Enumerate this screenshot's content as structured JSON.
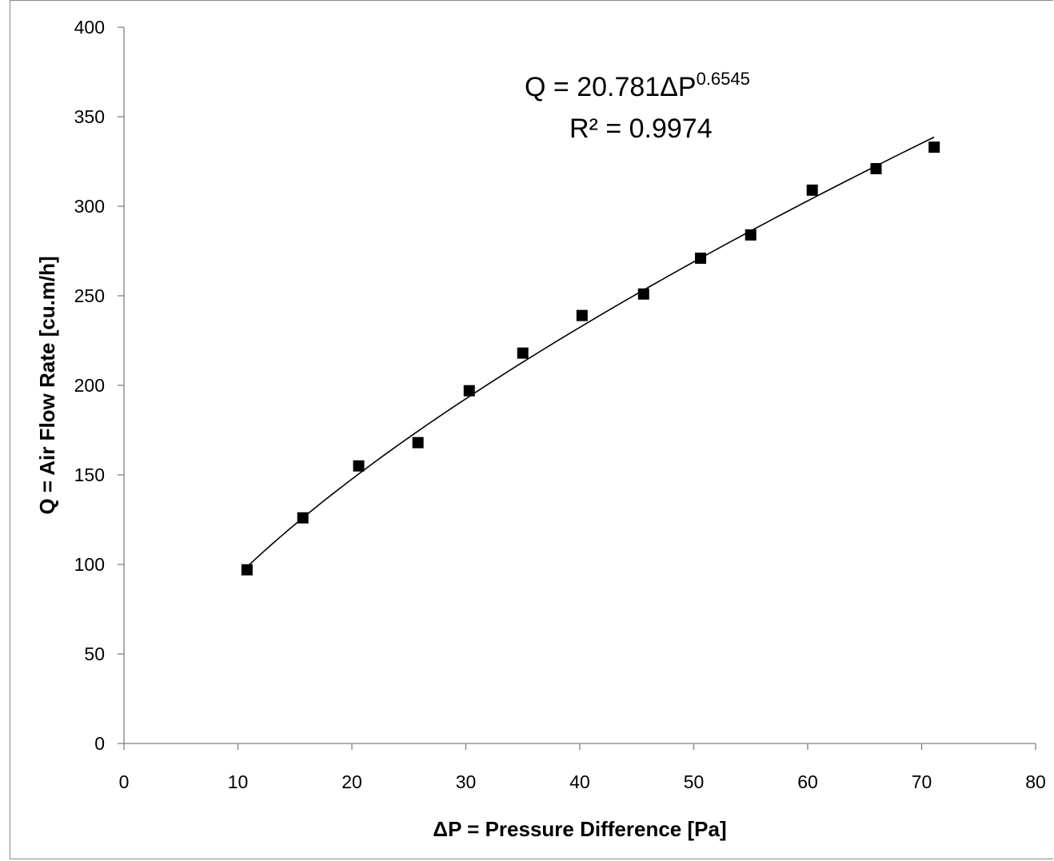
{
  "chart_data": {
    "type": "scatter",
    "xlabel": "ΔP = Pressure Difference [Pa]",
    "ylabel": "Q = Air Flow Rate [cu.m/h]",
    "xlim": [
      0,
      80
    ],
    "ylim": [
      0,
      400
    ],
    "x_ticks": [
      "0",
      "10",
      "20",
      "30",
      "40",
      "50",
      "60",
      "70",
      "80"
    ],
    "y_ticks": [
      "0",
      "50",
      "100",
      "150",
      "200",
      "250",
      "300",
      "350",
      "400"
    ],
    "grid": false,
    "legend": "none",
    "series": [
      {
        "marker": "square",
        "color": "#000000",
        "points": [
          {
            "x": 10.8,
            "y": 97
          },
          {
            "x": 15.7,
            "y": 126
          },
          {
            "x": 20.6,
            "y": 155
          },
          {
            "x": 25.8,
            "y": 168
          },
          {
            "x": 30.3,
            "y": 197
          },
          {
            "x": 35.0,
            "y": 218
          },
          {
            "x": 40.2,
            "y": 239
          },
          {
            "x": 45.6,
            "y": 251
          },
          {
            "x": 50.6,
            "y": 271
          },
          {
            "x": 55.0,
            "y": 284
          },
          {
            "x": 60.4,
            "y": 309
          },
          {
            "x": 66.0,
            "y": 321
          },
          {
            "x": 71.1,
            "y": 333
          }
        ]
      }
    ],
    "trendline": {
      "type": "power",
      "coefficient": 20.781,
      "exponent": 0.6545,
      "x_range": [
        10.8,
        71.1
      ],
      "color": "#000000"
    },
    "annotation": {
      "equation_prefix": "Q = 20.781ΔP",
      "equation_exponent": "0.6545",
      "r_squared_label": "R² = 0.9974"
    }
  }
}
